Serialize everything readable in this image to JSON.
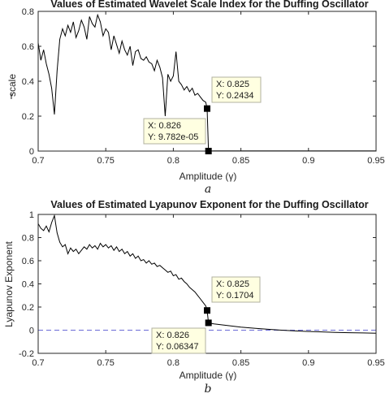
{
  "colors": {
    "line": "#000000",
    "axis": "#262626",
    "dashed": "#6b6bd6",
    "tooltip_fill": "#ffffe1",
    "tooltip_border": "#b0b0a0"
  },
  "chart_data": [
    {
      "type": "line",
      "panel_label": "a",
      "title": "Values of Estimated Wavelet Scale Index for the Duffing Oscillator",
      "xlabel": "Amplitude (γ)",
      "ylabel": "i",
      "ylabel_sub": "scale",
      "xlim": [
        0.7,
        0.95
      ],
      "ylim": [
        0,
        0.8
      ],
      "xticks": [
        0.7,
        0.75,
        0.8,
        0.85,
        0.9,
        0.95
      ],
      "xtick_labels": [
        "0.7",
        "0.75",
        "0.8",
        "0.85",
        "0.9",
        "0.95"
      ],
      "yticks": [
        0,
        0.2,
        0.4,
        0.6,
        0.8
      ],
      "ytick_labels": [
        "0",
        "0.2",
        "0.4",
        "0.6",
        "0.8"
      ],
      "grid": false,
      "series": [
        {
          "x": [
            0.7,
            0.702,
            0.704,
            0.706,
            0.708,
            0.71,
            0.712,
            0.714,
            0.716,
            0.718,
            0.72,
            0.722,
            0.724,
            0.726,
            0.728,
            0.73,
            0.732,
            0.734,
            0.736,
            0.738,
            0.74,
            0.742,
            0.744,
            0.746,
            0.748,
            0.75,
            0.752,
            0.754,
            0.756,
            0.758,
            0.76,
            0.762,
            0.764,
            0.766,
            0.768,
            0.77,
            0.772,
            0.774,
            0.776,
            0.778,
            0.78,
            0.782,
            0.784,
            0.786,
            0.788,
            0.79,
            0.792,
            0.794,
            0.796,
            0.798,
            0.8,
            0.802,
            0.804,
            0.806,
            0.808,
            0.81,
            0.812,
            0.814,
            0.816,
            0.818,
            0.82,
            0.822,
            0.824,
            0.825,
            0.826,
            0.83,
            0.85,
            0.9,
            0.95
          ],
          "y": [
            0.62,
            0.52,
            0.58,
            0.5,
            0.44,
            0.36,
            0.21,
            0.46,
            0.64,
            0.7,
            0.66,
            0.72,
            0.68,
            0.74,
            0.65,
            0.69,
            0.75,
            0.71,
            0.64,
            0.77,
            0.73,
            0.71,
            0.78,
            0.74,
            0.66,
            0.7,
            0.68,
            0.58,
            0.66,
            0.61,
            0.56,
            0.63,
            0.58,
            0.55,
            0.6,
            0.49,
            0.57,
            0.58,
            0.53,
            0.52,
            0.54,
            0.51,
            0.5,
            0.46,
            0.52,
            0.48,
            0.42,
            0.2,
            0.44,
            0.4,
            0.43,
            0.57,
            0.4,
            0.38,
            0.35,
            0.37,
            0.34,
            0.36,
            0.32,
            0.33,
            0.31,
            0.29,
            0.28,
            0.2434,
            9.782e-05,
            0.001,
            0.001,
            0.001,
            0.001
          ]
        }
      ],
      "markers": [
        {
          "x": 0.825,
          "y": 0.2434
        },
        {
          "x": 0.826,
          "y": 9.782e-05
        }
      ],
      "annotations": [
        {
          "line1": "X: 0.825",
          "line2": "Y: 0.2434"
        },
        {
          "line1": "X: 0.826",
          "line2": "Y: 9.782e-05"
        }
      ]
    },
    {
      "type": "line",
      "panel_label": "b",
      "title": "Values of Estimated Lyapunov Exponent for the Duffing Oscillator",
      "xlabel": "Amplitude (γ)",
      "ylabel": "Lyapunov Exponent",
      "xlim": [
        0.7,
        0.95
      ],
      "ylim": [
        -0.2,
        1
      ],
      "xticks": [
        0.7,
        0.75,
        0.8,
        0.85,
        0.9,
        0.95
      ],
      "xtick_labels": [
        "0.7",
        "0.75",
        "0.8",
        "0.85",
        "0.9",
        "0.95"
      ],
      "yticks": [
        -0.2,
        0,
        0.2,
        0.4,
        0.6,
        0.8,
        1
      ],
      "ytick_labels": [
        "-0.2",
        "0",
        "0.2",
        "0.4",
        "0.6",
        "0.8",
        "1"
      ],
      "grid": false,
      "reference_line_y": 0,
      "series": [
        {
          "x": [
            0.7,
            0.702,
            0.704,
            0.706,
            0.708,
            0.71,
            0.712,
            0.714,
            0.716,
            0.718,
            0.72,
            0.722,
            0.724,
            0.726,
            0.728,
            0.73,
            0.732,
            0.734,
            0.736,
            0.738,
            0.74,
            0.742,
            0.744,
            0.746,
            0.748,
            0.75,
            0.752,
            0.754,
            0.756,
            0.758,
            0.76,
            0.762,
            0.764,
            0.766,
            0.768,
            0.77,
            0.772,
            0.774,
            0.776,
            0.778,
            0.78,
            0.782,
            0.784,
            0.786,
            0.788,
            0.79,
            0.792,
            0.794,
            0.796,
            0.798,
            0.8,
            0.802,
            0.804,
            0.806,
            0.808,
            0.81,
            0.812,
            0.814,
            0.816,
            0.818,
            0.82,
            0.822,
            0.824,
            0.825,
            0.826,
            0.83,
            0.84,
            0.85,
            0.86,
            0.87,
            0.88,
            0.89,
            0.9,
            0.91,
            0.92,
            0.93,
            0.94,
            0.95
          ],
          "y": [
            0.92,
            0.88,
            0.86,
            0.9,
            0.85,
            0.93,
            0.99,
            0.84,
            0.76,
            0.72,
            0.74,
            0.66,
            0.71,
            0.68,
            0.7,
            0.66,
            0.69,
            0.72,
            0.7,
            0.74,
            0.71,
            0.73,
            0.7,
            0.75,
            0.72,
            0.74,
            0.71,
            0.73,
            0.69,
            0.72,
            0.68,
            0.7,
            0.66,
            0.68,
            0.64,
            0.66,
            0.62,
            0.64,
            0.6,
            0.61,
            0.58,
            0.6,
            0.57,
            0.58,
            0.55,
            0.56,
            0.54,
            0.52,
            0.5,
            0.51,
            0.47,
            0.48,
            0.44,
            0.45,
            0.42,
            0.4,
            0.37,
            0.35,
            0.33,
            0.3,
            0.27,
            0.24,
            0.21,
            0.1704,
            0.06347,
            0.055,
            0.04,
            0.027,
            0.017,
            0.008,
            0.0,
            -0.006,
            -0.011,
            -0.015,
            -0.019,
            -0.022,
            -0.024,
            -0.026
          ]
        }
      ],
      "markers": [
        {
          "x": 0.825,
          "y": 0.1704
        },
        {
          "x": 0.826,
          "y": 0.06347
        }
      ],
      "annotations": [
        {
          "line1": "X: 0.825",
          "line2": "Y: 0.1704"
        },
        {
          "line1": "X: 0.826",
          "line2": "Y: 0.06347"
        }
      ]
    }
  ]
}
